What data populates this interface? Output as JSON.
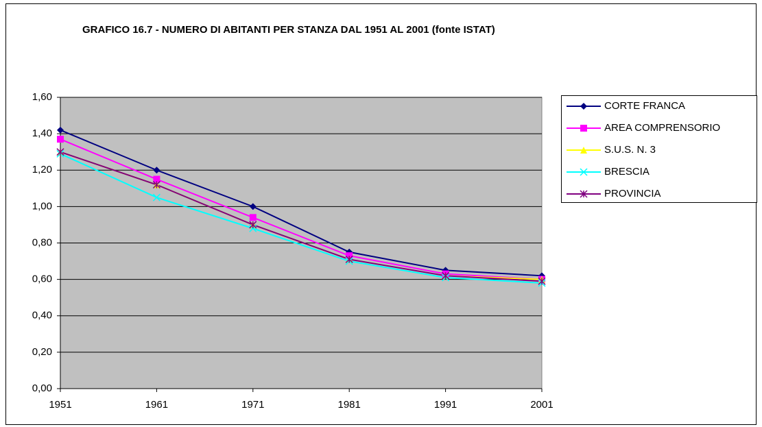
{
  "chart_data": {
    "type": "line",
    "title": "GRAFICO 16.7 - NUMERO DI ABITANTI PER STANZA DAL 1951 AL 2001 (fonte ISTAT)",
    "categories": [
      "1951",
      "1961",
      "1971",
      "1981",
      "1991",
      "2001"
    ],
    "series": [
      {
        "name": "CORTE FRANCA",
        "color": "#000080",
        "marker": "diamond",
        "values": [
          1.42,
          1.2,
          1.0,
          0.75,
          0.65,
          0.62
        ]
      },
      {
        "name": "AREA COMPRENSORIO",
        "color": "#ff00ff",
        "marker": "square",
        "values": [
          1.37,
          1.15,
          0.94,
          0.73,
          0.63,
          0.6
        ]
      },
      {
        "name": "S.U.S. N. 3",
        "color": "#ffff00",
        "marker": "triangle",
        "values": [
          1.3,
          1.12,
          0.9,
          0.71,
          0.62,
          0.6
        ]
      },
      {
        "name": "BRESCIA",
        "color": "#00ffff",
        "marker": "x",
        "values": [
          1.29,
          1.05,
          0.88,
          0.7,
          0.61,
          0.58
        ]
      },
      {
        "name": "PROVINCIA",
        "color": "#800080",
        "marker": "star",
        "values": [
          1.3,
          1.12,
          0.9,
          0.71,
          0.62,
          0.59
        ]
      }
    ],
    "ylim": [
      0,
      1.6
    ],
    "yticks": [
      {
        "value": 0,
        "label": "0,00"
      },
      {
        "value": 0.2,
        "label": "0,20"
      },
      {
        "value": 0.4,
        "label": "0,40"
      },
      {
        "value": 0.6,
        "label": "0,60"
      },
      {
        "value": 0.8,
        "label": "0,80"
      },
      {
        "value": 1.0,
        "label": "1,00"
      },
      {
        "value": 1.2,
        "label": "1,20"
      },
      {
        "value": 1.4,
        "label": "1,40"
      },
      {
        "value": 1.6,
        "label": "1,60"
      }
    ],
    "grid": true,
    "plot_background": "#c0c0c0",
    "legend": "right"
  }
}
